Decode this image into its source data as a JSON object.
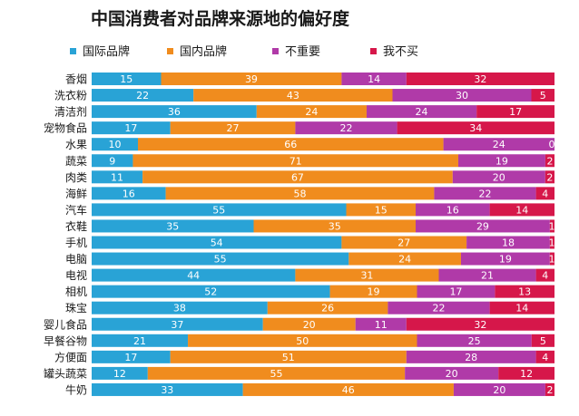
{
  "chart_data": {
    "type": "bar",
    "orientation": "horizontal",
    "stacked": true,
    "title": "中国消费者对品牌来源地的偏好度",
    "legend_position": "top",
    "categories": [
      "香烟",
      "洗衣粉",
      "清洁剂",
      "宠物食品",
      "水果",
      "蔬菜",
      "肉类",
      "海鲜",
      "汽车",
      "衣鞋",
      "手机",
      "电脑",
      "电视",
      "相机",
      "珠宝",
      "婴儿食品",
      "早餐谷物",
      "方便面",
      "罐头蔬菜",
      "牛奶"
    ],
    "series": [
      {
        "name": "国际品牌",
        "color": "#29a3d6",
        "values": [
          15,
          22,
          36,
          17,
          10,
          9,
          11,
          16,
          55,
          35,
          54,
          55,
          44,
          52,
          38,
          37,
          21,
          17,
          12,
          33
        ]
      },
      {
        "name": "国内品牌",
        "color": "#f08c1e",
        "values": [
          39,
          43,
          24,
          27,
          66,
          71,
          67,
          58,
          15,
          35,
          27,
          24,
          31,
          19,
          26,
          20,
          50,
          51,
          55,
          46
        ]
      },
      {
        "name": "不重要",
        "color": "#b03aa8",
        "values": [
          14,
          30,
          24,
          22,
          24,
          19,
          20,
          22,
          16,
          29,
          18,
          19,
          21,
          17,
          22,
          11,
          25,
          28,
          20,
          20
        ]
      },
      {
        "name": "我不买",
        "color": "#d6174a",
        "values": [
          32,
          5,
          17,
          34,
          0,
          2,
          2,
          4,
          14,
          1,
          1,
          1,
          4,
          13,
          14,
          32,
          5,
          4,
          12,
          2
        ]
      }
    ],
    "xlim": [
      0,
      100
    ],
    "grid": false
  }
}
